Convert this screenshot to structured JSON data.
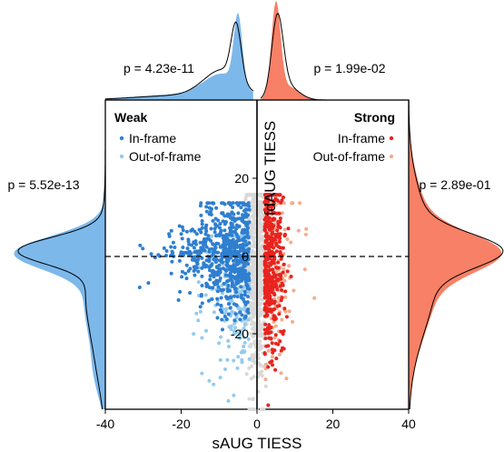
{
  "chart_data": {
    "type": "scatter",
    "title": "",
    "xlabel": "sAUG TIESS",
    "ylabel": "fdAUG TIESS",
    "xlim": [
      -40,
      40
    ],
    "ylim": [
      -38,
      37
    ],
    "xticks": [
      "-40",
      "-20",
      "0",
      "20",
      "40"
    ],
    "yticks": [
      "20",
      "0",
      "-20"
    ],
    "reference_lines": {
      "x": 0,
      "y": 0,
      "y_style": "dashed"
    },
    "legend": {
      "weak": {
        "title": "Weak",
        "position": "top-left",
        "entries": [
          {
            "label": "In-frame",
            "color": "#2f7fd0"
          },
          {
            "label": "Out-of-frame",
            "color": "#93cbef"
          }
        ]
      },
      "strong": {
        "title": "Strong",
        "position": "top-right",
        "entries": [
          {
            "label": "In-frame",
            "color": "#e8241f"
          },
          {
            "label": "Out-of-frame",
            "color": "#f6ab8e"
          }
        ]
      }
    },
    "p_values": {
      "top_left": "p = 4.23e-11",
      "top_right": "p = 1.99e-02",
      "left": "p = 5.52e-13",
      "right": "p = 2.89e-01"
    },
    "marginal_densities": {
      "top_weak": {
        "peak_at": -5,
        "color": "#7db8eb"
      },
      "top_strong": {
        "peak_at": 5,
        "color": "#f78066"
      },
      "left_weak": {
        "peak_at": 0,
        "color": "#7db8eb"
      },
      "right_strong": {
        "peak_at": 0,
        "color": "#f78066"
      }
    },
    "series": [
      {
        "group": "weak",
        "name": "In-frame",
        "color": "#2f7fd0",
        "x_range": [
          -38,
          -2
        ],
        "y_range": [
          -30,
          12
        ]
      },
      {
        "group": "weak",
        "name": "Out-of-frame",
        "color": "#93cbef",
        "x_range": [
          -22,
          -2
        ],
        "y_range": [
          -36,
          4
        ]
      },
      {
        "group": "none",
        "name": "",
        "color": "#d9d9d9",
        "x_range": [
          -3,
          3
        ],
        "y_range": [
          -38,
          14
        ]
      },
      {
        "group": "strong",
        "name": "In-frame",
        "color": "#e8241f",
        "x_range": [
          2,
          9
        ],
        "y_range": [
          -37,
          14
        ]
      },
      {
        "group": "strong",
        "name": "Out-of-frame",
        "color": "#f6ab8e",
        "x_range": [
          2,
          16
        ],
        "y_range": [
          -37,
          12
        ]
      }
    ]
  }
}
